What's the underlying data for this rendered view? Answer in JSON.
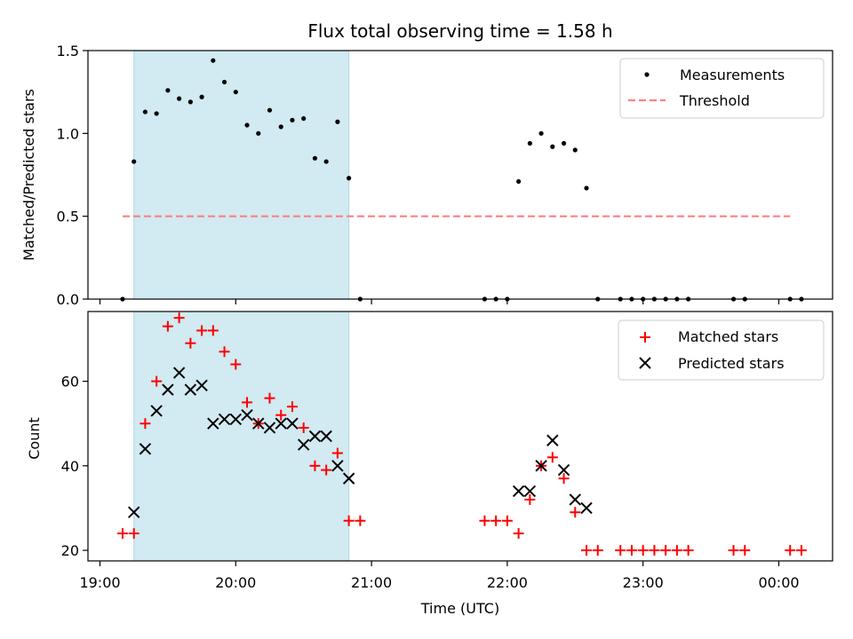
{
  "colors": {
    "shade": "#add8e6",
    "measurement": "#000000",
    "threshold": "#ff7f7f",
    "matched": "#ff0000",
    "predicted": "#000000"
  },
  "chart_data": [
    {
      "type": "scatter",
      "title": "Flux total observing time = 1.58 h",
      "xlabel": "",
      "ylabel": "Matched/Predicted stars",
      "ylim": [
        0,
        1.5
      ],
      "yticks": [
        "0.0",
        "0.5",
        "1.0",
        "1.5"
      ],
      "shaded_interval": [
        "19:15",
        "20:50"
      ],
      "legend_position": "upper right",
      "series": [
        {
          "name": "Measurements",
          "marker": "dot",
          "x": [
            "19:10",
            "19:15",
            "19:20",
            "19:25",
            "19:30",
            "19:35",
            "19:40",
            "19:45",
            "19:50",
            "19:55",
            "20:00",
            "20:05",
            "20:10",
            "20:15",
            "20:20",
            "20:25",
            "20:30",
            "20:35",
            "20:40",
            "20:45",
            "20:50",
            "20:55",
            "21:50",
            "21:55",
            "22:00",
            "22:05",
            "22:10",
            "22:15",
            "22:20",
            "22:25",
            "22:30",
            "22:35",
            "22:40",
            "22:50",
            "22:55",
            "23:00",
            "23:05",
            "23:10",
            "23:15",
            "23:20",
            "23:40",
            "23:45",
            "00:05",
            "00:10"
          ],
          "y": [
            0.0,
            0.83,
            1.13,
            1.12,
            1.26,
            1.21,
            1.19,
            1.22,
            1.44,
            1.31,
            1.25,
            1.05,
            1.0,
            1.14,
            1.04,
            1.08,
            1.09,
            0.85,
            0.83,
            1.07,
            0.73,
            0.0,
            0.0,
            0.0,
            0.0,
            0.71,
            0.94,
            1.0,
            0.92,
            0.94,
            0.9,
            0.67,
            0.0,
            0.0,
            0.0,
            0.0,
            0.0,
            0.0,
            0.0,
            0.0,
            0.0,
            0.0,
            0.0,
            0.0
          ]
        },
        {
          "name": "Threshold",
          "marker": "dashed-line",
          "x": [
            "19:10",
            "00:05"
          ],
          "y": [
            0.5,
            0.5
          ]
        }
      ]
    },
    {
      "type": "scatter",
      "title": "",
      "xlabel": "Time (UTC)",
      "ylabel": "Count",
      "ylim": [
        17.5,
        76.5
      ],
      "yticks": [
        "20",
        "40",
        "60"
      ],
      "xticks": [
        "19:00",
        "20:00",
        "21:00",
        "22:00",
        "23:00",
        "00:00"
      ],
      "shaded_interval": [
        "19:15",
        "20:50"
      ],
      "legend_position": "upper right",
      "series": [
        {
          "name": "Matched stars",
          "marker": "plus",
          "x": [
            "19:10",
            "19:15",
            "19:20",
            "19:25",
            "19:30",
            "19:35",
            "19:40",
            "19:45",
            "19:50",
            "19:55",
            "20:00",
            "20:05",
            "20:10",
            "20:15",
            "20:20",
            "20:25",
            "20:30",
            "20:35",
            "20:40",
            "20:45",
            "20:50",
            "20:55",
            "21:50",
            "21:55",
            "22:00",
            "22:05",
            "22:10",
            "22:15",
            "22:20",
            "22:25",
            "22:30",
            "22:35",
            "22:40",
            "22:50",
            "22:55",
            "23:00",
            "23:05",
            "23:10",
            "23:15",
            "23:20",
            "23:40",
            "23:45",
            "00:05",
            "00:10"
          ],
          "y": [
            24,
            24,
            50,
            60,
            73,
            75,
            69,
            72,
            72,
            67,
            64,
            55,
            50,
            56,
            52,
            54,
            49,
            40,
            39,
            43,
            27,
            27,
            27,
            27,
            27,
            24,
            32,
            40,
            42,
            37,
            29,
            20,
            20,
            20,
            20,
            20,
            20,
            20,
            20,
            20,
            20,
            20,
            20,
            20
          ]
        },
        {
          "name": "Predicted stars",
          "marker": "x",
          "x": [
            "19:15",
            "19:20",
            "19:25",
            "19:30",
            "19:35",
            "19:40",
            "19:45",
            "19:50",
            "19:55",
            "20:00",
            "20:05",
            "20:10",
            "20:15",
            "20:20",
            "20:25",
            "20:30",
            "20:35",
            "20:40",
            "20:45",
            "20:50",
            "22:05",
            "22:10",
            "22:15",
            "22:20",
            "22:25",
            "22:30",
            "22:35"
          ],
          "y": [
            29,
            44,
            53,
            58,
            62,
            58,
            59,
            50,
            51,
            51,
            52,
            50,
            49,
            50,
            50,
            45,
            47,
            47,
            40,
            37,
            34,
            34,
            40,
            46,
            39,
            32,
            30
          ]
        }
      ]
    }
  ]
}
